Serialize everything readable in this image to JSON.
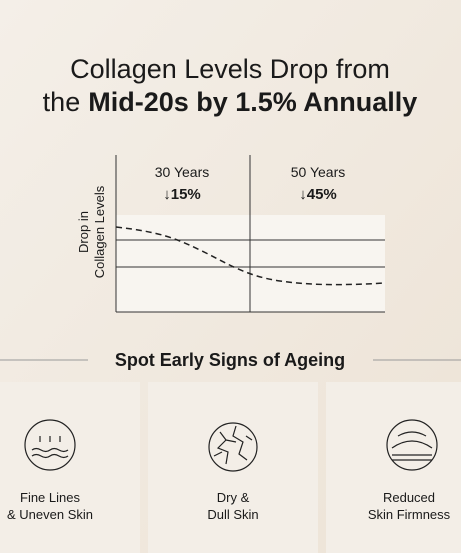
{
  "header": {
    "line1": "Collagen Levels Drop from",
    "line2_regular": "the",
    "line2_bold": "Mid-20s by 1.5% Annually"
  },
  "chart": {
    "y_label_lines": [
      "Drop in",
      "Collagen Levels"
    ],
    "columns": [
      {
        "label": "30 Years",
        "change": "↓15%"
      },
      {
        "label": "50 Years",
        "change": "↓45%"
      }
    ]
  },
  "section": {
    "title": "Spot Early Signs of Ageing"
  },
  "cards": [
    {
      "lines": [
        "Fine Lines",
        "& Uneven Skin"
      ]
    },
    {
      "lines": [
        "Dry &",
        "Dull Skin"
      ]
    },
    {
      "lines": [
        "Reduced",
        "Skin Firmness"
      ]
    }
  ]
}
